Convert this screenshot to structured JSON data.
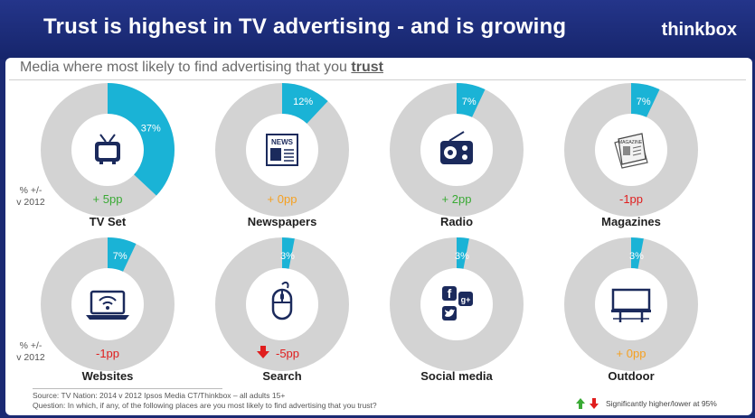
{
  "header": {
    "title": "Trust is highest in TV advertising - and is growing",
    "brand": "thinkbox"
  },
  "subtitle": {
    "prefix": "Media where most likely to find advertising that you ",
    "emphasis": "trust"
  },
  "vs_label": {
    "line1": "% +/-",
    "line2": "v 2012"
  },
  "colors": {
    "slice": "#1ab3d6",
    "ring": "#d3d3d3",
    "green": "#3aaa35",
    "orange": "#f5a020",
    "red": "#e01e1e",
    "icon": "#1b2a5c"
  },
  "chart_data": {
    "type": "pie",
    "title": "Media where most likely to find advertising that you trust",
    "items": [
      {
        "label": "TV Set",
        "value": 37,
        "value_label": "37%",
        "change": 5,
        "change_label": "+ 5pp",
        "change_color": "green",
        "icon": "tv-icon"
      },
      {
        "label": "Newspapers",
        "value": 12,
        "value_label": "12%",
        "change": 0,
        "change_label": "+ 0pp",
        "change_color": "orange",
        "icon": "newspaper-icon"
      },
      {
        "label": "Radio",
        "value": 7,
        "value_label": "7%",
        "change": 2,
        "change_label": "+ 2pp",
        "change_color": "green",
        "icon": "radio-icon"
      },
      {
        "label": "Magazines",
        "value": 7,
        "value_label": "7%",
        "change": -1,
        "change_label": "-1pp",
        "change_color": "red",
        "icon": "magazine-icon"
      },
      {
        "label": "Websites",
        "value": 7,
        "value_label": "7%",
        "change": -1,
        "change_label": "-1pp",
        "change_color": "red",
        "icon": "laptop-wifi-icon"
      },
      {
        "label": "Search",
        "value": 3,
        "value_label": "3%",
        "change": -5,
        "change_label": "-5pp",
        "change_color": "red",
        "significant": "down",
        "icon": "mouse-icon"
      },
      {
        "label": "Social media",
        "value": 3,
        "value_label": "3%",
        "change": null,
        "change_label": "",
        "change_color": "",
        "icon": "social-icons"
      },
      {
        "label": "Outdoor",
        "value": 3,
        "value_label": "3%",
        "change": 0,
        "change_label": "+ 0pp",
        "change_color": "orange",
        "icon": "billboard-icon"
      }
    ]
  },
  "footer": {
    "source": "Source: TV Nation: 2014 v 2012 Ipsos Media CT/Thinkbox – all adults 15+",
    "question": "Question: In which, if any, of the following places are you most likely to find advertising that you trust?"
  },
  "legend": {
    "text": "Significantly higher/lower at 95%",
    "up_icon": "green-up-arrow-icon",
    "down_icon": "red-down-arrow-icon"
  }
}
